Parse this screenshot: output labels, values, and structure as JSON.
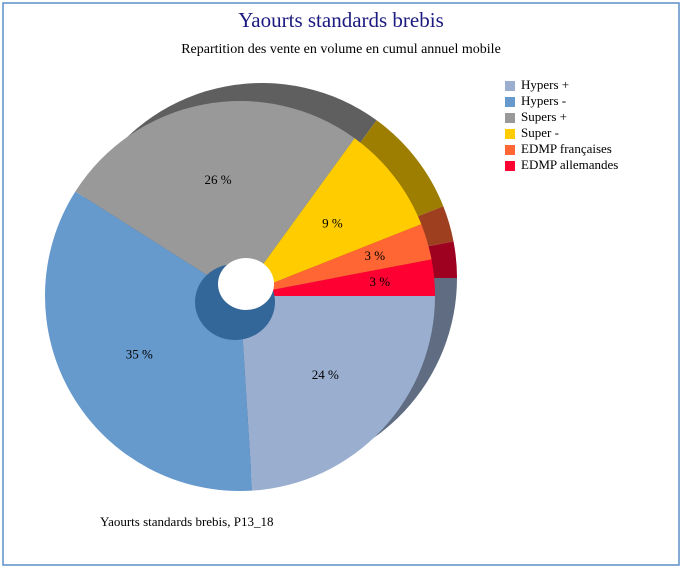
{
  "chart_data": {
    "type": "pie",
    "title": "Yaourts standards brebis",
    "subtitle": "Repartition des vente en volume en cumul annuel mobile",
    "footnote": "Yaourts standards brebis, P13_18",
    "categories": [
      "Hypers +",
      "Hypers -",
      "Supers +",
      "Super -",
      "EDMP françaises",
      "EDMP allemandes"
    ],
    "values": [
      24,
      35,
      26,
      9,
      3,
      3
    ],
    "value_labels": [
      "24 %",
      "35 %",
      "26 %",
      "9 %",
      "3 %",
      "3 %"
    ],
    "colors": [
      "#9aaed0",
      "#6699cc",
      "#999999",
      "#ffcc00",
      "#ff6633",
      "#ff0033"
    ],
    "legend": "right"
  }
}
